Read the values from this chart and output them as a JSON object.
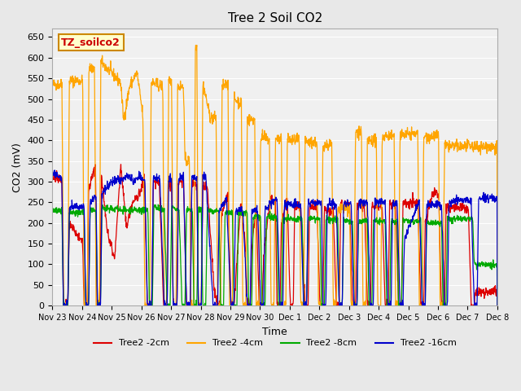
{
  "title": "Tree 2 Soil CO2",
  "xlabel": "Time",
  "ylabel": "CO2 (mV)",
  "ylim": [
    0,
    670
  ],
  "bg_color": "#e8e8e8",
  "series_colors": {
    "2cm": "#dd0000",
    "4cm": "#ffa500",
    "8cm": "#00aa00",
    "16cm": "#0000cc"
  },
  "xtick_labels": [
    "Nov 23",
    "Nov 24",
    "Nov 25",
    "Nov 26",
    "Nov 27",
    "Nov 28",
    "Nov 29",
    "Nov 30",
    "Dec 1",
    "Dec 2",
    "Dec 3",
    "Dec 4",
    "Dec 5",
    "Dec 6",
    "Dec 7",
    "Dec 8"
  ],
  "legend_label": "TZ_soilco2",
  "legend_box_facecolor": "#ffffcc",
  "legend_box_edgecolor": "#cc8800",
  "legend_text_color": "#cc0000"
}
